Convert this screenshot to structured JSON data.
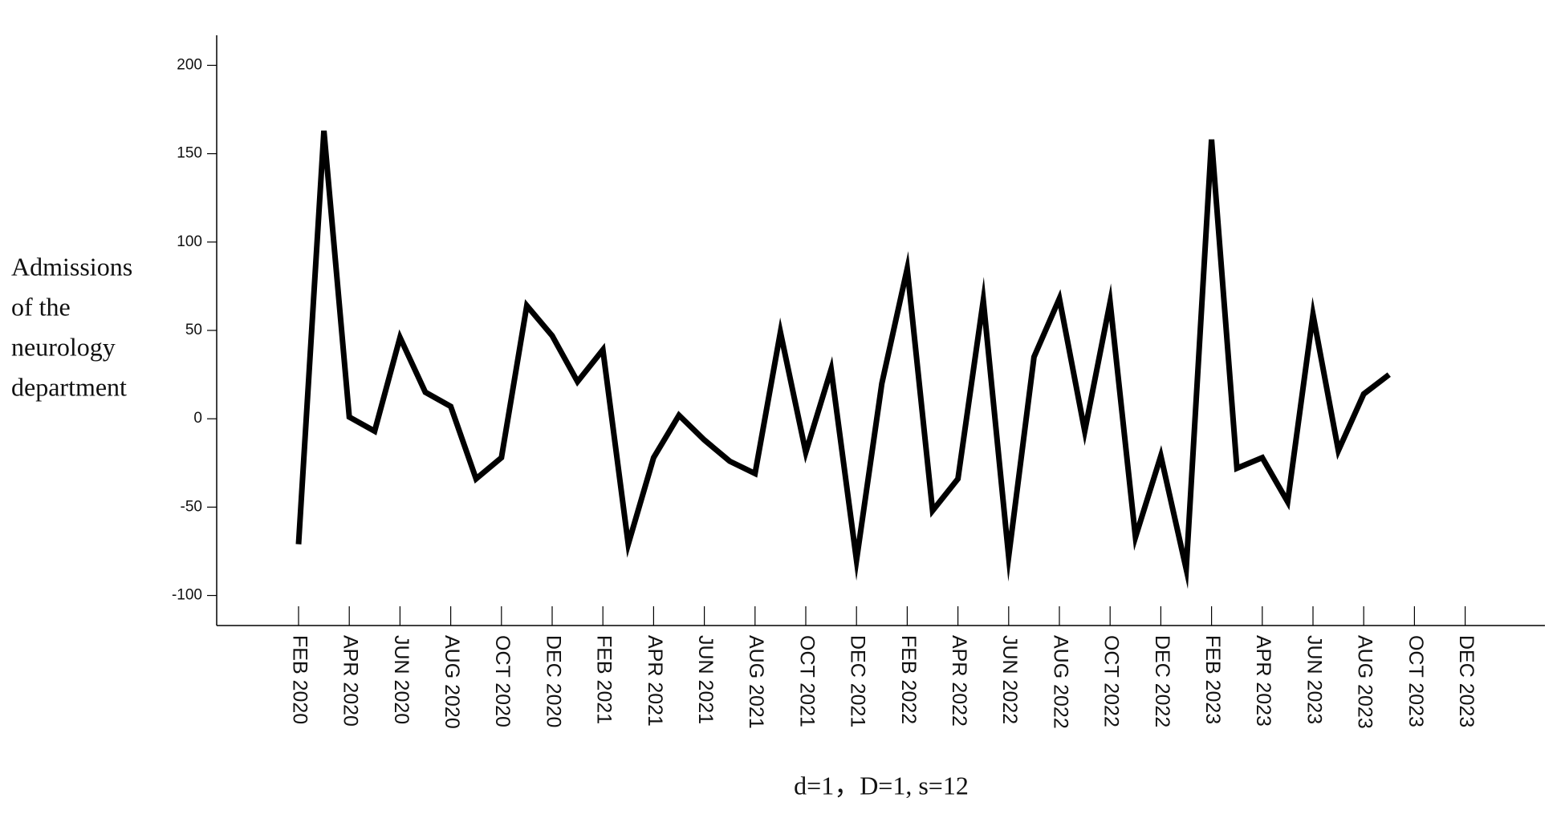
{
  "chart_data": {
    "type": "line",
    "y_label": [
      "Admissions",
      "of the",
      "neurology",
      "department"
    ],
    "x_label": "d=1，D=1, s=12",
    "categories": [
      "FEB 2020",
      null,
      "APR 2020",
      null,
      "JUN 2020",
      null,
      "AUG 2020",
      null,
      "OCT 2020",
      null,
      "DEC 2020",
      null,
      "FEB 2021",
      null,
      "APR 2021",
      null,
      "JUN 2021",
      null,
      "AUG 2021",
      null,
      "OCT 2021",
      null,
      "DEC 2021",
      null,
      "FEB 2022",
      null,
      "APR 2022",
      null,
      "JUN 2022",
      null,
      "AUG 2022",
      null,
      "OCT 2022",
      null,
      "DEC 2022",
      null,
      "FEB 2023",
      null,
      "APR 2023",
      null,
      "JUN 2023",
      null,
      "AUG 2023",
      null,
      "OCT 2023",
      null,
      "DEC 2023"
    ],
    "values": [
      -71,
      163,
      1,
      -7,
      46,
      15,
      7,
      -34,
      -22,
      64,
      47,
      21,
      39,
      -71,
      -22,
      2,
      -12,
      -24,
      -31,
      49,
      -19,
      28,
      -80,
      20,
      85,
      -52,
      -34,
      67,
      -78,
      35,
      68,
      -7,
      66,
      -67,
      -21,
      -85,
      158,
      -28,
      -22,
      -47,
      59,
      -18,
      14,
      25,
      null,
      null,
      null
    ],
    "color": "#000000",
    "ylim": [
      -117,
      217
    ],
    "yticks": [
      -100,
      -50,
      0,
      50,
      100,
      150,
      200
    ]
  }
}
